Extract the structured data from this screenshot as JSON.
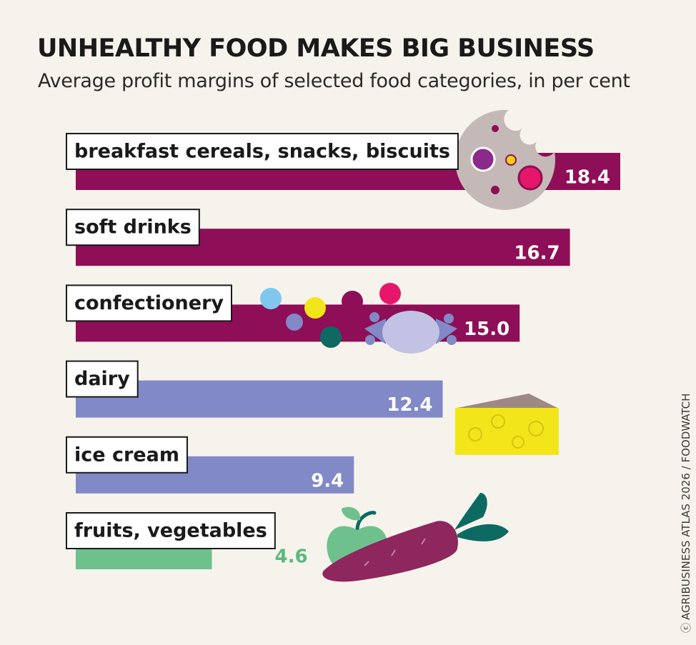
{
  "title": "UNHEALTHY FOOD MAKES BIG BUSINESS",
  "subtitle": "Average profit margins of selected food categories, in per cent",
  "credit": "AGRIBUSINESS ATLAS 2026 / FOODWATCH",
  "credit_icon": "cc-icon",
  "chart_data": {
    "type": "bar",
    "orientation": "horizontal",
    "categories": [
      "breakfast cereals, snacks, biscuits",
      "soft drinks",
      "confectionery",
      "dairy",
      "ice cream",
      "fruits, vegetables"
    ],
    "values": [
      18.4,
      16.7,
      15.0,
      12.4,
      9.4,
      4.6
    ],
    "value_labels": [
      "18.4",
      "16.7",
      "15.0",
      "12.4",
      "9.4",
      "4.6"
    ],
    "bar_colors": [
      "#8e0e57",
      "#8e0e57",
      "#8e0e57",
      "#8189c6",
      "#8189c6",
      "#6ec18c"
    ],
    "xlim": [
      0,
      18.4
    ],
    "grid": false,
    "legend": "none",
    "illustrations": [
      "cookie-icon",
      "candy-icon",
      "cheese-icon",
      "apple-icon",
      "carrot-icon"
    ]
  }
}
